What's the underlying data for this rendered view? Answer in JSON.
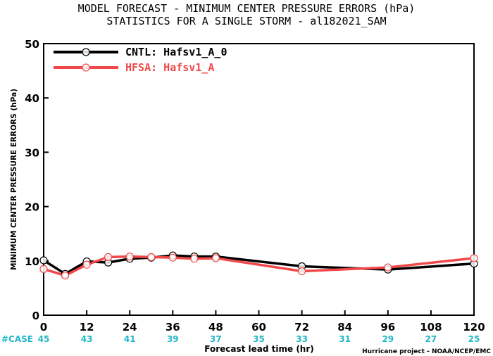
{
  "title_line1": "MODEL FORECAST - MINIMUM CENTER PRESSURE ERRORS (hPa)",
  "title_line2": "STATISTICS FOR A SINGLE STORM - al182021_SAM",
  "credit": "Hurricane project - NOAA/NCEP/EMC",
  "case_label": "#CASE",
  "colors": {
    "case": "#22b8c8"
  },
  "chart_data": {
    "type": "line",
    "xlabel": "Forecast lead time (hr)",
    "ylabel": "MINIMUM CENTER PRESSURE ERRORS (hPa)",
    "xlim": [
      0,
      120
    ],
    "ylim": [
      0,
      50
    ],
    "xticks": [
      0,
      12,
      24,
      36,
      48,
      60,
      72,
      84,
      96,
      108,
      120
    ],
    "yticks": [
      0,
      10,
      20,
      30,
      40,
      50
    ],
    "grid": false,
    "legend_position": "top-left",
    "case_counts": [
      {
        "x": 0,
        "n": "45"
      },
      {
        "x": 12,
        "n": "43"
      },
      {
        "x": 24,
        "n": "41"
      },
      {
        "x": 36,
        "n": "39"
      },
      {
        "x": 48,
        "n": "37"
      },
      {
        "x": 60,
        "n": "35"
      },
      {
        "x": 72,
        "n": "33"
      },
      {
        "x": 84,
        "n": "31"
      },
      {
        "x": 96,
        "n": "29"
      },
      {
        "x": 108,
        "n": "27"
      },
      {
        "x": 120,
        "n": "25"
      }
    ],
    "series": [
      {
        "name": "CNTL: Hafsv1_A_0",
        "color": "#000000",
        "x": [
          0,
          6,
          12,
          18,
          24,
          30,
          36,
          42,
          48,
          72,
          96,
          120
        ],
        "y": [
          10.1,
          7.6,
          9.9,
          9.7,
          10.4,
          10.6,
          11.0,
          10.8,
          10.8,
          9.0,
          8.4,
          9.5
        ]
      },
      {
        "name": "HFSA: Hafsv1_A",
        "color": "#f04848",
        "x": [
          0,
          6,
          12,
          18,
          24,
          30,
          36,
          42,
          48,
          72,
          96,
          120
        ],
        "y": [
          8.5,
          7.3,
          9.3,
          10.7,
          10.8,
          10.7,
          10.6,
          10.4,
          10.5,
          8.1,
          8.8,
          10.5
        ]
      }
    ]
  }
}
